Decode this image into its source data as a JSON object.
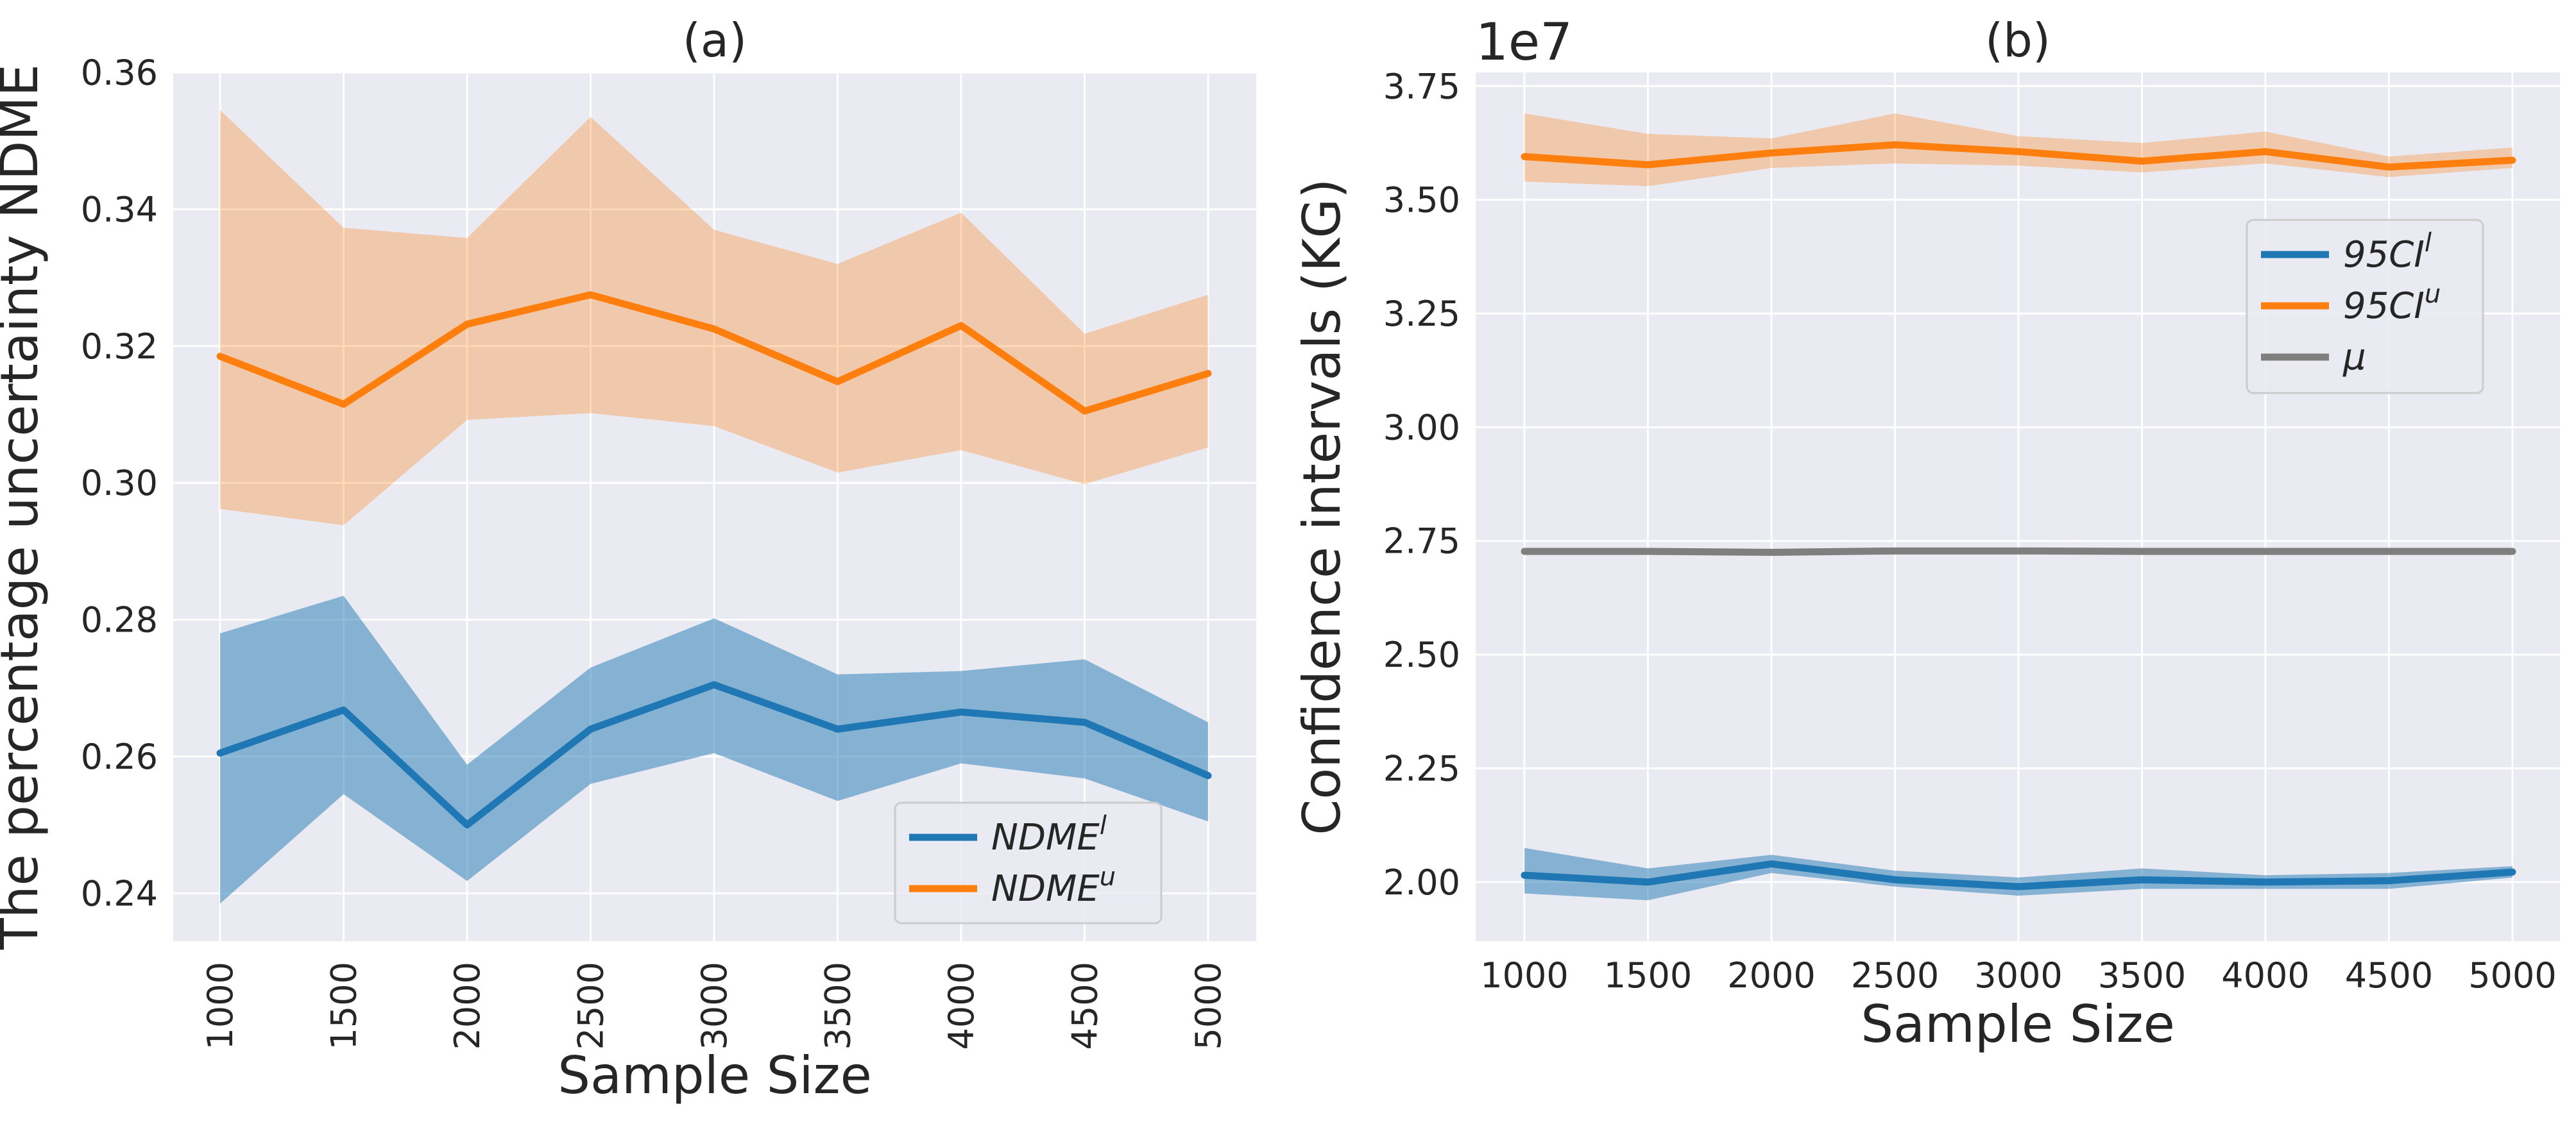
{
  "colors": {
    "blue": "#1f77b4",
    "orange": "#ff7f0e",
    "gray": "#7f7f7f",
    "background": "#eaeaf2",
    "grid": "#ffffff"
  },
  "chart_data": [
    {
      "type": "line",
      "title": "(a)",
      "xlabel": "Sample Size",
      "ylabel": "The percentage uncertainty NDME",
      "x": [
        1000,
        1500,
        2000,
        2500,
        3000,
        3500,
        4000,
        4500,
        5000
      ],
      "x_tick_labels": [
        "1000",
        "1500",
        "2000",
        "2500",
        "3000",
        "3500",
        "4000",
        "4500",
        "5000"
      ],
      "y_ticks": [
        0.24,
        0.26,
        0.28,
        0.3,
        0.32,
        0.34,
        0.36
      ],
      "y_tick_labels": [
        "0.24",
        "0.26",
        "0.28",
        "0.30",
        "0.32",
        "0.34",
        "0.36"
      ],
      "ylim": [
        0.233,
        0.36
      ],
      "grid": true,
      "legend_position": "lower-right",
      "series": [
        {
          "name_base": "NDME",
          "name_sup": "l",
          "color": "blue",
          "values": [
            0.2605,
            0.2668,
            0.25,
            0.264,
            0.2705,
            0.264,
            0.2665,
            0.265,
            0.2572
          ],
          "lower": [
            0.2385,
            0.2545,
            0.2418,
            0.256,
            0.2605,
            0.2535,
            0.259,
            0.2568,
            0.2505
          ],
          "upper": [
            0.278,
            0.2835,
            0.2588,
            0.273,
            0.2802,
            0.272,
            0.2725,
            0.2742,
            0.265
          ]
        },
        {
          "name_base": "NDME",
          "name_sup": "u",
          "color": "orange",
          "values": [
            0.3185,
            0.3115,
            0.3232,
            0.3275,
            0.3225,
            0.3148,
            0.323,
            0.3105,
            0.316
          ],
          "lower": [
            0.2962,
            0.2938,
            0.3092,
            0.3102,
            0.3083,
            0.3015,
            0.3048,
            0.2998,
            0.3052
          ],
          "upper": [
            0.3545,
            0.3373,
            0.3358,
            0.3535,
            0.337,
            0.332,
            0.3395,
            0.3218,
            0.3275
          ]
        }
      ]
    },
    {
      "type": "line",
      "title": "(b)",
      "xlabel": "Sample Size",
      "ylabel": "Confidence intervals (KG)",
      "y_offset_label": "1e7",
      "x": [
        1000,
        1500,
        2000,
        2500,
        3000,
        3500,
        4000,
        4500,
        5000
      ],
      "x_tick_labels": [
        "1000",
        "1500",
        "2000",
        "2500",
        "3000",
        "3500",
        "4000",
        "4500",
        "5000"
      ],
      "y_ticks": [
        2.0,
        2.25,
        2.5,
        2.75,
        3.0,
        3.25,
        3.5,
        3.75
      ],
      "y_tick_labels": [
        "2.00",
        "2.25",
        "2.50",
        "2.75",
        "3.00",
        "3.25",
        "3.50",
        "3.75"
      ],
      "ylim": [
        1.87,
        3.78
      ],
      "grid": true,
      "legend_position": "upper-right",
      "series": [
        {
          "name_base": "95CI",
          "name_sup": "l",
          "color": "blue",
          "values": [
            2.015,
            2.0,
            2.04,
            2.005,
            1.99,
            2.005,
            2.0,
            2.003,
            2.022
          ],
          "lower": [
            1.975,
            1.96,
            2.02,
            1.99,
            1.97,
            1.985,
            1.985,
            1.985,
            2.01
          ],
          "upper": [
            2.075,
            2.03,
            2.06,
            2.025,
            2.01,
            2.03,
            2.015,
            2.02,
            2.035
          ]
        },
        {
          "name_base": "95CI",
          "name_sup": "u",
          "color": "orange",
          "values": [
            3.595,
            3.577,
            3.603,
            3.621,
            3.606,
            3.585,
            3.606,
            3.572,
            3.587
          ],
          "lower": [
            3.54,
            3.53,
            3.57,
            3.58,
            3.575,
            3.56,
            3.58,
            3.55,
            3.57
          ],
          "upper": [
            3.69,
            3.645,
            3.635,
            3.69,
            3.64,
            3.625,
            3.65,
            3.595,
            3.615
          ]
        },
        {
          "name_base": "μ",
          "name_sup": "",
          "color": "gray",
          "values": [
            2.727,
            2.727,
            2.725,
            2.728,
            2.728,
            2.727,
            2.727,
            2.727,
            2.727
          ],
          "lower": null,
          "upper": null
        }
      ]
    }
  ]
}
